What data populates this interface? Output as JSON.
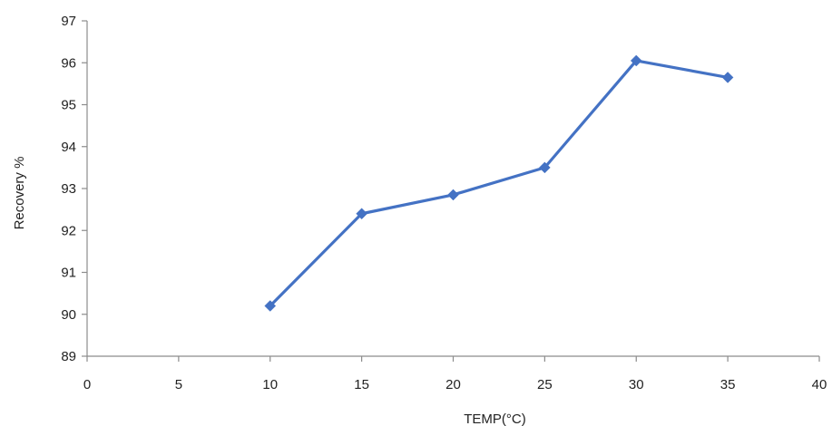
{
  "chart_data": {
    "type": "line",
    "title": "",
    "xlabel": "TEMP(°C)",
    "ylabel": "Recovery %",
    "xlim": [
      0,
      40
    ],
    "ylim": [
      89,
      97
    ],
    "x_ticks": [
      0,
      5,
      10,
      15,
      20,
      25,
      30,
      35,
      40
    ],
    "y_ticks": [
      89,
      90,
      91,
      92,
      93,
      94,
      95,
      96,
      97
    ],
    "grid": false,
    "legend": "none",
    "series": [
      {
        "x": [
          10,
          15,
          20,
          25,
          30,
          35
        ],
        "y": [
          90.2,
          92.4,
          92.85,
          93.5,
          96.05,
          95.65
        ],
        "marker": "diamond",
        "color": "#4472C4"
      }
    ]
  }
}
